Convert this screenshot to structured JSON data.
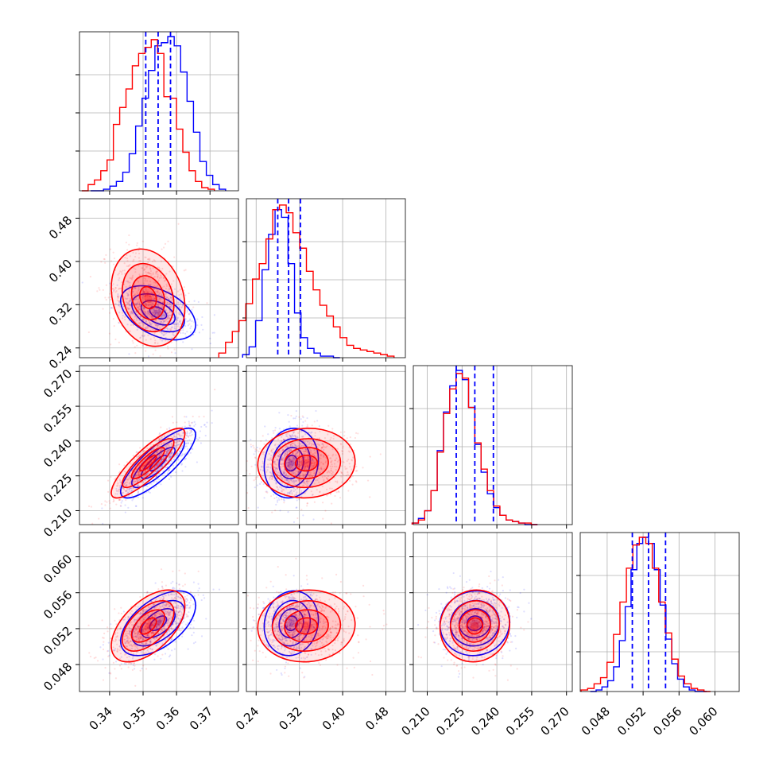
{
  "chart_data": {
    "type": "corner",
    "grid": true,
    "params": [
      {
        "ticks": [
          0.34,
          0.35,
          0.36,
          0.37
        ],
        "tick_labels": [
          "0.34",
          "0.35",
          "0.36",
          "0.37"
        ],
        "lim": [
          0.331,
          0.3785
        ]
      },
      {
        "ticks": [
          0.24,
          0.32,
          0.4,
          0.48
        ],
        "tick_labels": [
          "0.24",
          "0.32",
          "0.40",
          "0.48"
        ],
        "lim": [
          0.222,
          0.516
        ]
      },
      {
        "ticks": [
          0.21,
          0.225,
          0.24,
          0.255,
          0.27
        ],
        "tick_labels": [
          "0.210",
          "0.225",
          "0.240",
          "0.255",
          "0.270"
        ],
        "lim": [
          0.204,
          0.2725
        ]
      },
      {
        "ticks": [
          0.048,
          0.052,
          0.056,
          0.06
        ],
        "tick_labels": [
          "0.048",
          "0.052",
          "0.056",
          "0.060"
        ],
        "lim": [
          0.045,
          0.0627
        ]
      }
    ],
    "series": [
      {
        "color": "#ff0000",
        "mean": [
          0.3515,
          0.333,
          0.2305,
          0.0523
        ],
        "sd": [
          0.0055,
          0.045,
          0.0075,
          0.002
        ],
        "hist": [
          [
            0.0,
            0.04,
            0.07,
            0.13,
            0.2,
            0.43,
            0.54,
            0.66,
            0.81,
            0.89,
            0.93,
            0.98,
            0.89,
            0.61,
            0.6,
            0.4,
            0.25,
            0.13,
            0.06,
            0.02,
            0.01
          ],
          [
            0.03,
            0.1,
            0.17,
            0.24,
            0.35,
            0.51,
            0.61,
            0.77,
            0.96,
            0.99,
            0.94,
            0.81,
            0.71,
            0.56,
            0.44,
            0.34,
            0.27,
            0.2,
            0.13,
            0.08,
            0.06,
            0.05,
            0.04,
            0.03,
            0.02,
            0.01
          ],
          [
            0.01,
            0.03,
            0.09,
            0.22,
            0.47,
            0.72,
            0.88,
            0.98,
            0.95,
            0.76,
            0.53,
            0.36,
            0.22,
            0.12,
            0.06,
            0.03,
            0.02,
            0.01,
            0.01,
            0.0
          ],
          [
            0.01,
            0.02,
            0.05,
            0.09,
            0.19,
            0.37,
            0.58,
            0.8,
            0.95,
            1.0,
            0.96,
            0.8,
            0.58,
            0.38,
            0.21,
            0.1,
            0.05,
            0.02,
            0.01,
            0.0
          ]
        ]
      },
      {
        "color": "#0000ff",
        "mean": [
          0.3545,
          0.305,
          0.2305,
          0.0526
        ],
        "sd": [
          0.0056,
          0.025,
          0.0075,
          0.0018
        ],
        "hist": [
          [
            0.0,
            0.0,
            0.01,
            0.03,
            0.06,
            0.12,
            0.24,
            0.42,
            0.6,
            0.78,
            0.94,
            0.96,
            1.0,
            0.94,
            0.77,
            0.58,
            0.38,
            0.19,
            0.1,
            0.04,
            0.01
          ],
          [
            0.02,
            0.07,
            0.24,
            0.57,
            0.8,
            0.96,
            0.91,
            0.61,
            0.29,
            0.13,
            0.06,
            0.03,
            0.01,
            0.01,
            0.0
          ],
          [
            0.01,
            0.04,
            0.09,
            0.22,
            0.48,
            0.73,
            0.9,
            1.0,
            0.94,
            0.76,
            0.52,
            0.34,
            0.2,
            0.11,
            0.06,
            0.03,
            0.02,
            0.01,
            0.0,
            0.0
          ],
          [
            0.0,
            0.01,
            0.03,
            0.07,
            0.16,
            0.33,
            0.55,
            0.79,
            0.96,
            1.0,
            0.96,
            0.79,
            0.56,
            0.34,
            0.18,
            0.08,
            0.03,
            0.01,
            0.0,
            0.0
          ]
        ],
        "quantiles": [
          [
            0.3508,
            0.3545,
            0.3582
          ],
          [
            0.28,
            0.3,
            0.322
          ],
          [
            0.2225,
            0.2305,
            0.2385
          ],
          [
            0.0508,
            0.0526,
            0.0545
          ]
        ]
      }
    ],
    "correlations": {
      "1-0": {
        "#ff0000": -0.2,
        "#0000ff": -0.45
      },
      "2-0": {
        "#ff0000": 0.85,
        "#0000ff": 0.82
      },
      "2-1": {
        "#ff0000": 0.05,
        "#0000ff": 0.1
      },
      "3-0": {
        "#ff0000": 0.55,
        "#0000ff": 0.55
      },
      "3-1": {
        "#ff0000": 0.05,
        "#0000ff": 0.1
      },
      "3-2": {
        "#ff0000": 0.05,
        "#0000ff": 0.05
      }
    }
  }
}
